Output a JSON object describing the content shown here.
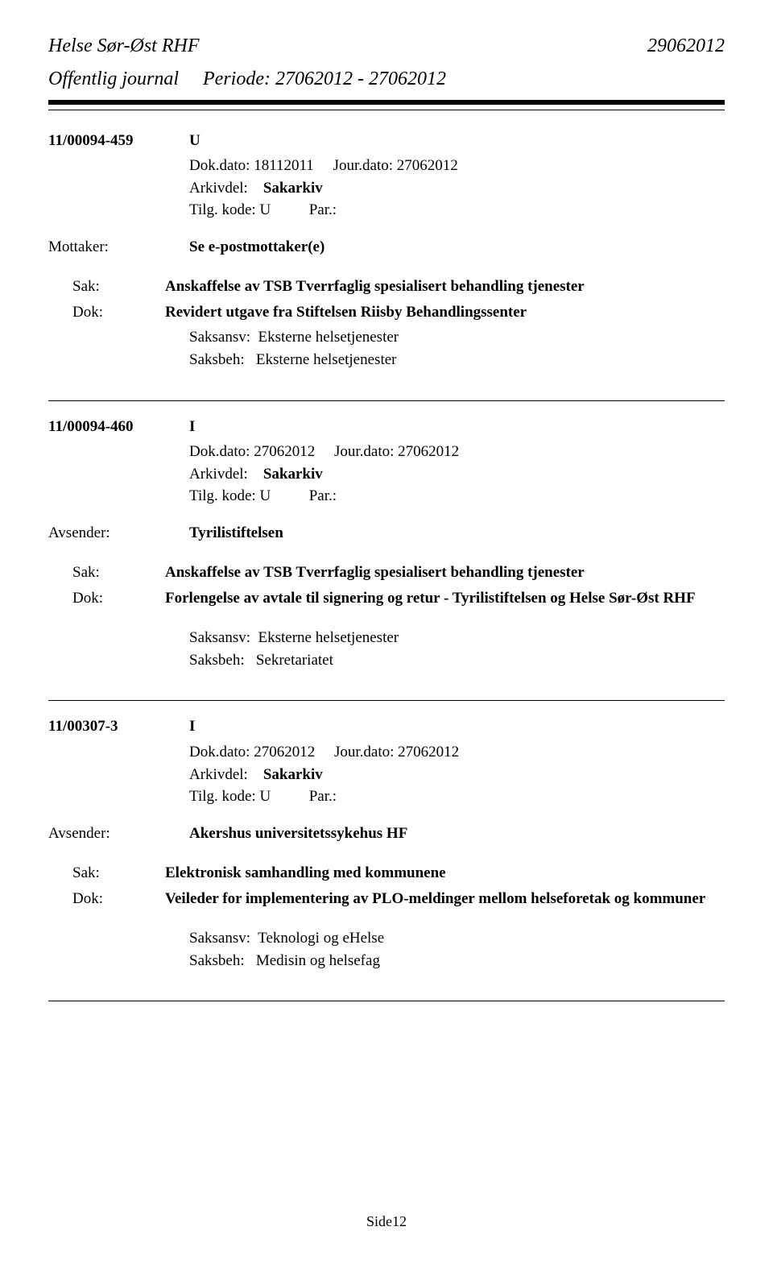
{
  "header": {
    "title": "Helse Sør-Øst RHF",
    "subtitle": "Offentlig journal",
    "period": "Periode: 27062012 - 27062012",
    "date": "29062012"
  },
  "records": [
    {
      "id": "11/00094-459",
      "type": "U",
      "dok_dato": "Dok.dato: 18112011",
      "jour_dato": "Jour.dato:  27062012",
      "arkivdel_label": "Arkivdel:",
      "arkivdel_value": "Sakarkiv",
      "tilg_label": "Tilg. kode: U",
      "par_label": "Par.:",
      "mottaker_label": "Mottaker:",
      "mottaker_value": "Se e-postmottaker(e)",
      "sak_label": "Sak:",
      "sak_value": "Anskaffelse av TSB Tverrfaglig spesialisert behandling tjenester",
      "dok_label": "Dok:",
      "dok_value": "Revidert utgave fra Stiftelsen Riisby Behandlingssenter",
      "saksansv_label": "Saksansv:",
      "saksansv_value": "Eksterne helsetjenester",
      "saksbeh_label": "Saksbeh:",
      "saksbeh_value": "Eksterne helsetjenester"
    },
    {
      "id": "11/00094-460",
      "type": "I",
      "dok_dato": "Dok.dato: 27062012",
      "jour_dato": "Jour.dato:  27062012",
      "arkivdel_label": "Arkivdel:",
      "arkivdel_value": "Sakarkiv",
      "tilg_label": "Tilg. kode: U",
      "par_label": "Par.:",
      "avsender_label": "Avsender:",
      "avsender_value": "Tyrilistiftelsen",
      "sak_label": "Sak:",
      "sak_value": "Anskaffelse av TSB Tverrfaglig spesialisert behandling tjenester",
      "dok_label": "Dok:",
      "dok_value": "Forlengelse av avtale til signering og retur - Tyrilistiftelsen og Helse Sør-Øst RHF",
      "saksansv_label": "Saksansv:",
      "saksansv_value": "Eksterne helsetjenester",
      "saksbeh_label": "Saksbeh:",
      "saksbeh_value": "Sekretariatet"
    },
    {
      "id": "11/00307-3",
      "type": "I",
      "dok_dato": "Dok.dato: 27062012",
      "jour_dato": "Jour.dato:  27062012",
      "arkivdel_label": "Arkivdel:",
      "arkivdel_value": "Sakarkiv",
      "tilg_label": "Tilg. kode: U",
      "par_label": "Par.:",
      "avsender_label": "Avsender:",
      "avsender_value": "Akershus universitetssykehus HF",
      "sak_label": "Sak:",
      "sak_value": "Elektronisk samhandling med kommunene",
      "dok_label": "Dok:",
      "dok_value": "Veileder for implementering av PLO-meldinger mellom helseforetak og kommuner",
      "saksansv_label": "Saksansv:",
      "saksansv_value": "Teknologi og eHelse",
      "saksbeh_label": "Saksbeh:",
      "saksbeh_value": "Medisin og helsefag"
    }
  ],
  "page_number": "Side12"
}
